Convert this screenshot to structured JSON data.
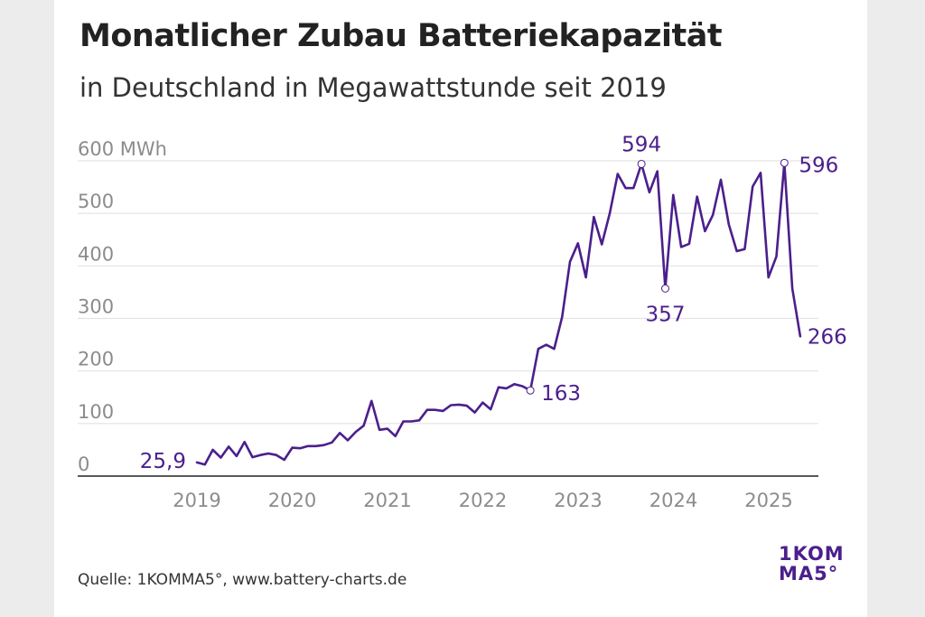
{
  "title": "Monatlicher Zubau Batteriekapazität",
  "subtitle": "in Deutschland in Megawattstunde seit 2019",
  "source": "Quelle: 1KOMMA5°, www.battery-charts.de",
  "logo": {
    "line1": "1KOM",
    "line2": "MA5°"
  },
  "colors": {
    "line": "#4b1f8c",
    "grid": "#e3e3e3",
    "tick": "#8c8c8c",
    "axis": "#222222"
  },
  "chart_data": {
    "type": "line",
    "title": "Monatlicher Zubau Batteriekapazität",
    "subtitle": "in Deutschland in Megawattstunde seit 2019",
    "ylabel": "MWh",
    "ylim": [
      0,
      600
    ],
    "y_ticks": [
      {
        "value": 0,
        "label": "0"
      },
      {
        "value": 100,
        "label": "100"
      },
      {
        "value": 200,
        "label": "200"
      },
      {
        "value": 300,
        "label": "300"
      },
      {
        "value": 400,
        "label": "400"
      },
      {
        "value": 500,
        "label": "500"
      },
      {
        "value": 600,
        "label": "600 MWh"
      }
    ],
    "x_ticks": [
      {
        "value": 2019,
        "label": "2019"
      },
      {
        "value": 2020,
        "label": "2020"
      },
      {
        "value": 2021,
        "label": "2021"
      },
      {
        "value": 2022,
        "label": "2022"
      },
      {
        "value": 2023,
        "label": "2023"
      },
      {
        "value": 2024,
        "label": "2024"
      },
      {
        "value": 2025,
        "label": "2025"
      }
    ],
    "x_start": 2019.0,
    "step": 0.0833,
    "values": [
      26,
      22,
      50,
      35,
      56,
      38,
      65,
      36,
      40,
      43,
      40,
      31,
      54,
      53,
      57,
      57,
      59,
      64,
      82,
      68,
      84,
      96,
      143,
      88,
      90,
      76,
      104,
      104,
      106,
      126,
      126,
      124,
      135,
      136,
      134,
      121,
      140,
      127,
      169,
      167,
      175,
      171,
      163,
      242,
      250,
      242,
      303,
      408,
      443,
      378,
      493,
      441,
      500,
      575,
      548,
      548,
      594,
      540,
      580,
      357,
      535,
      436,
      442,
      532,
      466,
      497,
      564,
      479,
      428,
      432,
      551,
      577,
      378,
      418,
      596,
      357,
      266
    ],
    "annotations": [
      {
        "index": 0,
        "label": "25,9",
        "marker": false,
        "anchor": "end",
        "dx": -12,
        "dy": 6
      },
      {
        "index": 42,
        "label": "163",
        "marker": true,
        "anchor": "start",
        "dx": 12,
        "dy": 11
      },
      {
        "index": 56,
        "label": "594",
        "marker": true,
        "anchor": "middle",
        "dx": 0,
        "dy": -14
      },
      {
        "index": 59,
        "label": "357",
        "marker": true,
        "anchor": "middle",
        "dx": 0,
        "dy": 36
      },
      {
        "index": 74,
        "label": "596",
        "marker": true,
        "anchor": "start",
        "dx": 16,
        "dy": 10
      },
      {
        "index": 76,
        "label": "266",
        "marker": false,
        "anchor": "start",
        "dx": 8,
        "dy": 8
      }
    ]
  }
}
